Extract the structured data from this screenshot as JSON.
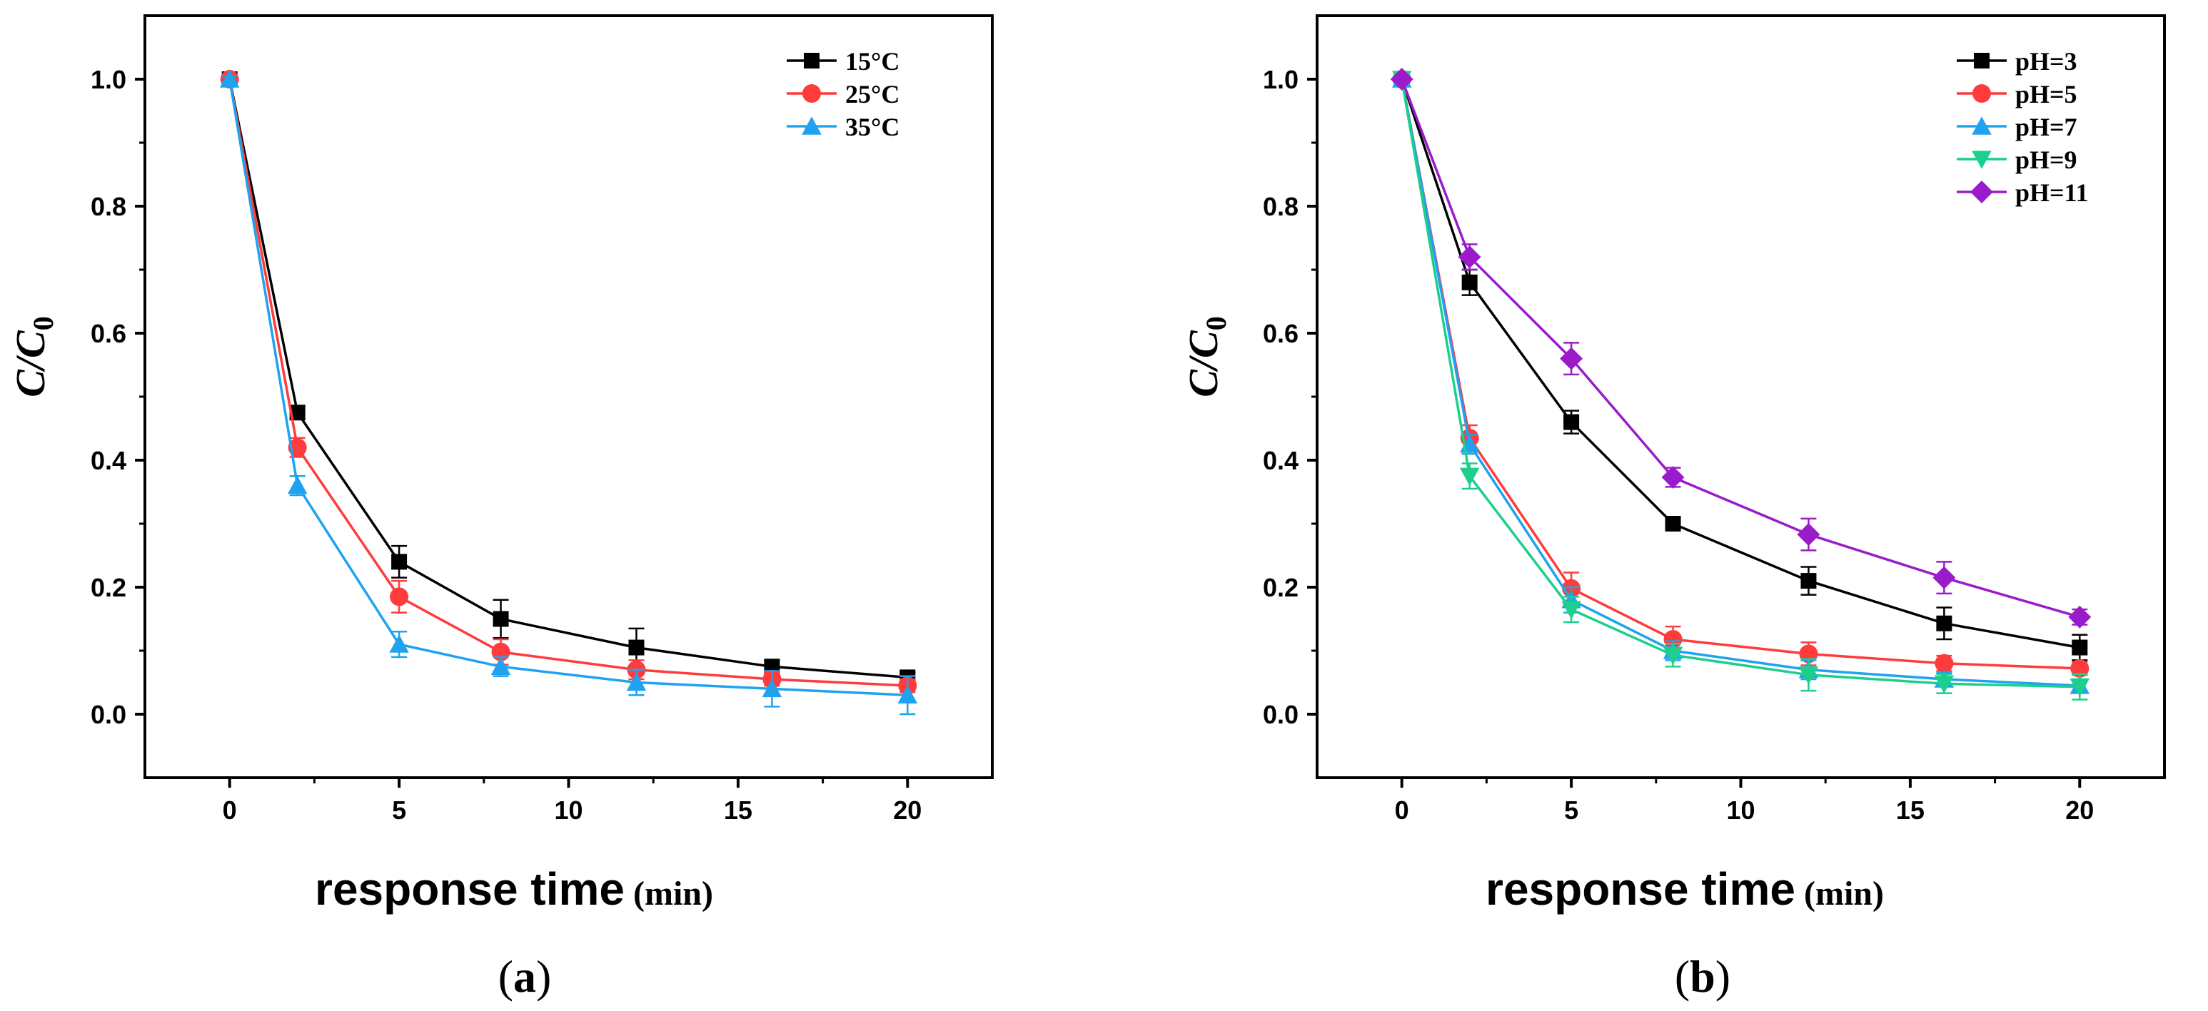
{
  "chart_data": [
    {
      "type": "line",
      "panel_label": "a",
      "xlabel": "response time",
      "xlabel_unit": "(min)",
      "ylabel": "C/C",
      "ylabel_subscript": "0",
      "xlim": [
        -2.5,
        22.5
      ],
      "ylim": [
        -0.1,
        1.1
      ],
      "xticks": [
        0,
        5,
        10,
        15,
        20
      ],
      "xtick_labels": [
        "0",
        "5",
        "10",
        "15",
        "20"
      ],
      "yticks": [
        0.0,
        0.2,
        0.4,
        0.6,
        0.8,
        1.0
      ],
      "ytick_labels": [
        "0.0",
        "0.2",
        "0.4",
        "0.6",
        "0.8",
        "1.0"
      ],
      "legend_position": "top-right",
      "series": [
        {
          "name": "15°C",
          "color": "#000000",
          "marker": "square",
          "x": [
            0,
            2,
            5,
            8,
            12,
            16,
            20
          ],
          "y": [
            1.0,
            0.475,
            0.24,
            0.15,
            0.105,
            0.075,
            0.058
          ],
          "err": [
            0.005,
            0.01,
            0.025,
            0.03,
            0.03,
            0.01,
            0.008
          ]
        },
        {
          "name": "25°C",
          "color": "#ff3b3b",
          "marker": "circle",
          "x": [
            0,
            2,
            5,
            8,
            12,
            16,
            20
          ],
          "y": [
            1.0,
            0.42,
            0.185,
            0.098,
            0.07,
            0.055,
            0.045
          ],
          "err": [
            0.005,
            0.015,
            0.025,
            0.02,
            0.015,
            0.01,
            0.01
          ]
        },
        {
          "name": "35°C",
          "color": "#1fa2f0",
          "marker": "triangle-up",
          "x": [
            0,
            2,
            5,
            8,
            12,
            16,
            20
          ],
          "y": [
            1.0,
            0.36,
            0.11,
            0.075,
            0.05,
            0.04,
            0.03
          ],
          "err": [
            0.005,
            0.015,
            0.02,
            0.015,
            0.02,
            0.028,
            0.03
          ]
        }
      ]
    },
    {
      "type": "line",
      "panel_label": "b",
      "xlabel": "response time",
      "xlabel_unit": "(min)",
      "ylabel": "C/C",
      "ylabel_subscript": "0",
      "xlim": [
        -2.5,
        22.5
      ],
      "ylim": [
        -0.1,
        1.1
      ],
      "xticks": [
        0,
        5,
        10,
        15,
        20
      ],
      "xtick_labels": [
        "0",
        "5",
        "10",
        "15",
        "20"
      ],
      "yticks": [
        0.0,
        0.2,
        0.4,
        0.6,
        0.8,
        1.0
      ],
      "ytick_labels": [
        "0.0",
        "0.2",
        "0.4",
        "0.6",
        "0.8",
        "1.0"
      ],
      "legend_position": "top-right",
      "series": [
        {
          "name": "pH=3",
          "color": "#000000",
          "marker": "square",
          "x": [
            0,
            2,
            5,
            8,
            12,
            16,
            20
          ],
          "y": [
            1.0,
            0.68,
            0.46,
            0.3,
            0.21,
            0.143,
            0.105
          ],
          "err": [
            0.005,
            0.02,
            0.018,
            0.008,
            0.022,
            0.025,
            0.02
          ]
        },
        {
          "name": "pH=5",
          "color": "#ff3b3b",
          "marker": "circle",
          "x": [
            0,
            2,
            5,
            8,
            12,
            16,
            20
          ],
          "y": [
            1.0,
            0.435,
            0.198,
            0.118,
            0.095,
            0.08,
            0.072
          ],
          "err": [
            0.005,
            0.02,
            0.025,
            0.02,
            0.018,
            0.012,
            0.01
          ]
        },
        {
          "name": "pH=7",
          "color": "#1fa2f0",
          "marker": "triangle-up",
          "x": [
            0,
            2,
            5,
            8,
            12,
            16,
            20
          ],
          "y": [
            1.0,
            0.425,
            0.18,
            0.1,
            0.07,
            0.055,
            0.045
          ],
          "err": [
            0.005,
            0.015,
            0.02,
            0.015,
            0.015,
            0.01,
            0.01
          ]
        },
        {
          "name": "pH=9",
          "color": "#1ccf8c",
          "marker": "triangle-down",
          "x": [
            0,
            2,
            5,
            8,
            12,
            16,
            20
          ],
          "y": [
            1.0,
            0.375,
            0.165,
            0.093,
            0.062,
            0.048,
            0.043
          ],
          "err": [
            0.005,
            0.02,
            0.02,
            0.018,
            0.025,
            0.015,
            0.02
          ]
        },
        {
          "name": "pH=11",
          "color": "#9a1bc9",
          "marker": "diamond",
          "x": [
            0,
            2,
            5,
            8,
            12,
            16,
            20
          ],
          "y": [
            1.0,
            0.72,
            0.56,
            0.373,
            0.283,
            0.215,
            0.153
          ],
          "err": [
            0.005,
            0.02,
            0.025,
            0.015,
            0.025,
            0.025,
            0.012
          ]
        }
      ]
    }
  ]
}
